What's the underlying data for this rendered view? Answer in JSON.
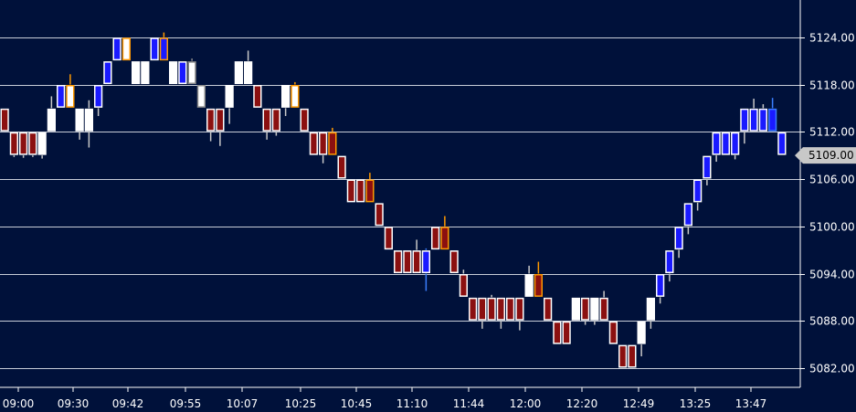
{
  "chart_data": {
    "type": "renko",
    "title": "",
    "xlabel": "",
    "ylabel": "",
    "brick_size": 3,
    "ylim": [
      5079,
      5130
    ],
    "y_ticks": [
      "5124.00",
      "5118.00",
      "5112.00",
      "5106.00",
      "5100.00",
      "5094.00",
      "5088.00",
      "5082.00"
    ],
    "x_ticks": [
      "09:00",
      "09:30",
      "09:42",
      "09:55",
      "10:07",
      "10:25",
      "10:45",
      "11:10",
      "11:44",
      "12:00",
      "12:20",
      "12:49",
      "13:25",
      "13:47"
    ],
    "last_price": "5109.00",
    "grid": "horizontal",
    "colors": {
      "background": "#00113a",
      "grid": "#c8cdd8",
      "axis": "#ffffff",
      "up_blue": "#1a1aff",
      "up_white": "#ffffff",
      "down_red": "#8b1010",
      "wick_gray": "#c8c8c8",
      "wick_blue": "#3a7fff",
      "wick_orange": "#ff9900",
      "outline_orange": "#ff9900",
      "outline_gray": "#888888",
      "badge": "#c8c8c8"
    },
    "bricks": [
      {
        "low": 5112,
        "high": 5115,
        "t": "r",
        "o": "w",
        "wt": null,
        "wb": null,
        "c": "#ccc"
      },
      {
        "low": 5109,
        "high": 5112,
        "t": "r",
        "o": "w",
        "wt": null,
        "wb": 5108.8,
        "c": "#ccc"
      },
      {
        "low": 5109,
        "high": 5112,
        "t": "r",
        "o": "w",
        "wt": null,
        "wb": 5108.7,
        "c": "#ccc"
      },
      {
        "low": 5109,
        "high": 5112,
        "t": "r",
        "o": "w",
        "wt": null,
        "wb": 5108.8,
        "c": "#ccc"
      },
      {
        "low": 5109,
        "high": 5112,
        "t": "w",
        "o": "w",
        "wt": null,
        "wb": 5108.6,
        "c": "#ccc"
      },
      {
        "low": 5112,
        "high": 5115,
        "t": "w",
        "o": "w",
        "wt": 5116.5,
        "wb": null,
        "c": "#ccc"
      },
      {
        "low": 5115,
        "high": 5118,
        "t": "b",
        "o": "w",
        "wt": null,
        "wb": null,
        "c": "#ccc"
      },
      {
        "low": 5115,
        "high": 5118,
        "t": "w",
        "o": "o",
        "wt": 5119.3,
        "wb": null,
        "c": "#f90"
      },
      {
        "low": 5112,
        "high": 5115,
        "t": "w",
        "o": "w",
        "wt": null,
        "wb": 5111,
        "c": "#ccc"
      },
      {
        "low": 5112,
        "high": 5115,
        "t": "w",
        "o": "w",
        "wt": 5116,
        "wb": 5110,
        "c": "#ccc"
      },
      {
        "low": 5115,
        "high": 5118,
        "t": "b",
        "o": "w",
        "wt": null,
        "wb": 5114,
        "c": "#ccc"
      },
      {
        "low": 5118,
        "high": 5121,
        "t": "b",
        "o": "w",
        "wt": null,
        "wb": null,
        "c": "#ccc"
      },
      {
        "low": 5121,
        "high": 5124,
        "t": "b",
        "o": "w",
        "wt": null,
        "wb": null,
        "c": "#ccc"
      },
      {
        "low": 5121,
        "high": 5124,
        "t": "w",
        "o": "o",
        "wt": null,
        "wb": null,
        "c": "#f90"
      },
      {
        "low": 5118,
        "high": 5121,
        "t": "w",
        "o": "w",
        "wt": null,
        "wb": null,
        "c": "#ccc"
      },
      {
        "low": 5118,
        "high": 5121,
        "t": "w",
        "o": "w",
        "wt": null,
        "wb": null,
        "c": "#ccc"
      },
      {
        "low": 5121,
        "high": 5124,
        "t": "b",
        "o": "w",
        "wt": null,
        "wb": null,
        "c": "#ccc"
      },
      {
        "low": 5121,
        "high": 5124,
        "t": "b",
        "o": "o",
        "wt": 5124.6,
        "wb": null,
        "c": "#f90"
      },
      {
        "low": 5118,
        "high": 5121,
        "t": "w",
        "o": "w",
        "wt": null,
        "wb": null,
        "c": "#ccc"
      },
      {
        "low": 5118,
        "high": 5121,
        "t": "b",
        "o": "w",
        "wt": null,
        "wb": null,
        "c": "#ccc"
      },
      {
        "low": 5118,
        "high": 5121,
        "t": "w",
        "o": "g",
        "wt": 5121.3,
        "wb": null,
        "c": "#888"
      },
      {
        "low": 5115,
        "high": 5118,
        "t": "w",
        "o": "g",
        "wt": null,
        "wb": null,
        "c": "#888"
      },
      {
        "low": 5112,
        "high": 5115,
        "t": "r",
        "o": "w",
        "wt": null,
        "wb": 5110.8,
        "c": "#ccc"
      },
      {
        "low": 5112,
        "high": 5115,
        "t": "r",
        "o": "w",
        "wt": null,
        "wb": 5110.2,
        "c": "#ccc"
      },
      {
        "low": 5115,
        "high": 5118,
        "t": "w",
        "o": "w",
        "wt": null,
        "wb": 5113,
        "c": "#ccc"
      },
      {
        "low": 5118,
        "high": 5121,
        "t": "w",
        "o": "w",
        "wt": null,
        "wb": null,
        "c": "#ccc"
      },
      {
        "low": 5118,
        "high": 5121,
        "t": "w",
        "o": "w",
        "wt": 5122.3,
        "wb": null,
        "c": "#ccc"
      },
      {
        "low": 5115,
        "high": 5118,
        "t": "r",
        "o": "w",
        "wt": null,
        "wb": null,
        "c": "#ccc"
      },
      {
        "low": 5112,
        "high": 5115,
        "t": "r",
        "o": "w",
        "wt": null,
        "wb": 5111,
        "c": "#ccc"
      },
      {
        "low": 5112,
        "high": 5115,
        "t": "r",
        "o": "w",
        "wt": null,
        "wb": 5111.5,
        "c": "#ccc"
      },
      {
        "low": 5115,
        "high": 5118,
        "t": "w",
        "o": "w",
        "wt": null,
        "wb": 5114,
        "c": "#ccc"
      },
      {
        "low": 5115,
        "high": 5118,
        "t": "w",
        "o": "o",
        "wt": 5118.3,
        "wb": null,
        "c": "#f90"
      },
      {
        "low": 5112,
        "high": 5115,
        "t": "r",
        "o": "w",
        "wt": null,
        "wb": null,
        "c": "#ccc"
      },
      {
        "low": 5109,
        "high": 5112,
        "t": "r",
        "o": "w",
        "wt": null,
        "wb": null,
        "c": "#ccc"
      },
      {
        "low": 5109,
        "high": 5112,
        "t": "r",
        "o": "w",
        "wt": null,
        "wb": 5108,
        "c": "#ccc"
      },
      {
        "low": 5109,
        "high": 5112,
        "t": "r",
        "o": "o",
        "wt": 5112.5,
        "wb": null,
        "c": "#f90"
      },
      {
        "low": 5106,
        "high": 5109,
        "t": "r",
        "o": "w",
        "wt": null,
        "wb": null,
        "c": "#ccc"
      },
      {
        "low": 5103,
        "high": 5106,
        "t": "r",
        "o": "w",
        "wt": null,
        "wb": null,
        "c": "#ccc"
      },
      {
        "low": 5103,
        "high": 5106,
        "t": "r",
        "o": "w",
        "wt": null,
        "wb": null,
        "c": "#ccc"
      },
      {
        "low": 5103,
        "high": 5106,
        "t": "r",
        "o": "o",
        "wt": 5106.8,
        "wb": null,
        "c": "#f90"
      },
      {
        "low": 5100,
        "high": 5103,
        "t": "r",
        "o": "w",
        "wt": null,
        "wb": null,
        "c": "#ccc"
      },
      {
        "low": 5097,
        "high": 5100,
        "t": "r",
        "o": "w",
        "wt": null,
        "wb": null,
        "c": "#ccc"
      },
      {
        "low": 5094,
        "high": 5097,
        "t": "r",
        "o": "w",
        "wt": null,
        "wb": null,
        "c": "#ccc"
      },
      {
        "low": 5094,
        "high": 5097,
        "t": "r",
        "o": "w",
        "wt": null,
        "wb": null,
        "c": "#ccc"
      },
      {
        "low": 5094,
        "high": 5097,
        "t": "r",
        "o": "w",
        "wt": 5098.3,
        "wb": null,
        "c": "#ccc"
      },
      {
        "low": 5094,
        "high": 5097,
        "t": "b",
        "o": "w",
        "wt": 5097.2,
        "wb": 5091.8,
        "c": "#3a7fff"
      },
      {
        "low": 5097,
        "high": 5100,
        "t": "r",
        "o": "w",
        "wt": null,
        "wb": null,
        "c": "#ccc"
      },
      {
        "low": 5097,
        "high": 5100,
        "t": "r",
        "o": "o",
        "wt": 5101.3,
        "wb": null,
        "c": "#f90"
      },
      {
        "low": 5094,
        "high": 5097,
        "t": "r",
        "o": "w",
        "wt": null,
        "wb": null,
        "c": "#888"
      },
      {
        "low": 5091,
        "high": 5094,
        "t": "r",
        "o": "w",
        "wt": 5094.5,
        "wb": null,
        "c": "#ccc"
      },
      {
        "low": 5088,
        "high": 5091,
        "t": "r",
        "o": "w",
        "wt": null,
        "wb": null,
        "c": "#ccc"
      },
      {
        "low": 5088,
        "high": 5091,
        "t": "r",
        "o": "w",
        "wt": null,
        "wb": 5087,
        "c": "#ccc"
      },
      {
        "low": 5088,
        "high": 5091,
        "t": "r",
        "o": "w",
        "wt": 5091.3,
        "wb": null,
        "c": "#ccc"
      },
      {
        "low": 5088,
        "high": 5091,
        "t": "r",
        "o": "w",
        "wt": null,
        "wb": 5087,
        "c": "#ccc"
      },
      {
        "low": 5088,
        "high": 5091,
        "t": "r",
        "o": "w",
        "wt": null,
        "wb": null,
        "c": "#ccc"
      },
      {
        "low": 5088,
        "high": 5091,
        "t": "r",
        "o": "w",
        "wt": null,
        "wb": 5086.8,
        "c": "#ccc"
      },
      {
        "low": 5091,
        "high": 5094,
        "t": "w",
        "o": "w",
        "wt": 5095,
        "wb": null,
        "c": "#ccc"
      },
      {
        "low": 5091,
        "high": 5094,
        "t": "r",
        "o": "o",
        "wt": 5095.5,
        "wb": null,
        "c": "#f90"
      },
      {
        "low": 5088,
        "high": 5091,
        "t": "r",
        "o": "w",
        "wt": null,
        "wb": null,
        "c": "#ccc"
      },
      {
        "low": 5085,
        "high": 5088,
        "t": "r",
        "o": "w",
        "wt": null,
        "wb": null,
        "c": "#ccc"
      },
      {
        "low": 5085,
        "high": 5088,
        "t": "r",
        "o": "w",
        "wt": null,
        "wb": null,
        "c": "#888"
      },
      {
        "low": 5088,
        "high": 5091,
        "t": "w",
        "o": "w",
        "wt": null,
        "wb": null,
        "c": "#ccc"
      },
      {
        "low": 5088,
        "high": 5091,
        "t": "r",
        "o": "w",
        "wt": null,
        "wb": 5087.5,
        "c": "#ccc"
      },
      {
        "low": 5088,
        "high": 5091,
        "t": "w",
        "o": "w",
        "wt": null,
        "wb": 5087.5,
        "c": "#ccc"
      },
      {
        "low": 5088,
        "high": 5091,
        "t": "r",
        "o": "w",
        "wt": 5091.8,
        "wb": null,
        "c": "#ccc"
      },
      {
        "low": 5085,
        "high": 5088,
        "t": "r",
        "o": "w",
        "wt": null,
        "wb": null,
        "c": "#ccc"
      },
      {
        "low": 5082,
        "high": 5085,
        "t": "r",
        "o": "w",
        "wt": null,
        "wb": null,
        "c": "#ccc"
      },
      {
        "low": 5082,
        "high": 5085,
        "t": "r",
        "o": "w",
        "wt": null,
        "wb": null,
        "c": "#ccc"
      },
      {
        "low": 5085,
        "high": 5088,
        "t": "w",
        "o": "w",
        "wt": null,
        "wb": 5083.5,
        "c": "#ccc"
      },
      {
        "low": 5088,
        "high": 5091,
        "t": "w",
        "o": "w",
        "wt": null,
        "wb": 5087,
        "c": "#ccc"
      },
      {
        "low": 5091,
        "high": 5094,
        "t": "b",
        "o": "w",
        "wt": null,
        "wb": 5090.2,
        "c": "#ccc"
      },
      {
        "low": 5094,
        "high": 5097,
        "t": "b",
        "o": "w",
        "wt": null,
        "wb": 5093,
        "c": "#ccc"
      },
      {
        "low": 5097,
        "high": 5100,
        "t": "b",
        "o": "w",
        "wt": null,
        "wb": 5096,
        "c": "#ccc"
      },
      {
        "low": 5100,
        "high": 5103,
        "t": "b",
        "o": "w",
        "wt": null,
        "wb": 5099,
        "c": "#ccc"
      },
      {
        "low": 5103,
        "high": 5106,
        "t": "b",
        "o": "w",
        "wt": null,
        "wb": 5102,
        "c": "#ccc"
      },
      {
        "low": 5106,
        "high": 5109,
        "t": "b",
        "o": "w",
        "wt": null,
        "wb": 5105.2,
        "c": "#ccc"
      },
      {
        "low": 5109,
        "high": 5112,
        "t": "b",
        "o": "w",
        "wt": null,
        "wb": 5108.2,
        "c": "#ccc"
      },
      {
        "low": 5109,
        "high": 5112,
        "t": "b",
        "o": "w",
        "wt": null,
        "wb": null,
        "c": "#ccc"
      },
      {
        "low": 5109,
        "high": 5112,
        "t": "b",
        "o": "w",
        "wt": null,
        "wb": 5108.5,
        "c": "#ccc"
      },
      {
        "low": 5112,
        "high": 5115,
        "t": "b",
        "o": "w",
        "wt": null,
        "wb": 5110.5,
        "c": "#ccc"
      },
      {
        "low": 5112,
        "high": 5115,
        "t": "b",
        "o": "w",
        "wt": 5116.2,
        "wb": null,
        "c": "#ccc"
      },
      {
        "low": 5112,
        "high": 5115,
        "t": "b",
        "o": "w",
        "wt": 5115.5,
        "wb": null,
        "c": "#ccc"
      },
      {
        "low": 5112,
        "high": 5115,
        "t": "b",
        "o": "b",
        "wt": 5116.3,
        "wb": null,
        "c": "#3a7fff"
      },
      {
        "low": 5109,
        "high": 5112,
        "t": "b",
        "o": "w",
        "wt": null,
        "wb": null,
        "c": "#ccc"
      }
    ]
  }
}
